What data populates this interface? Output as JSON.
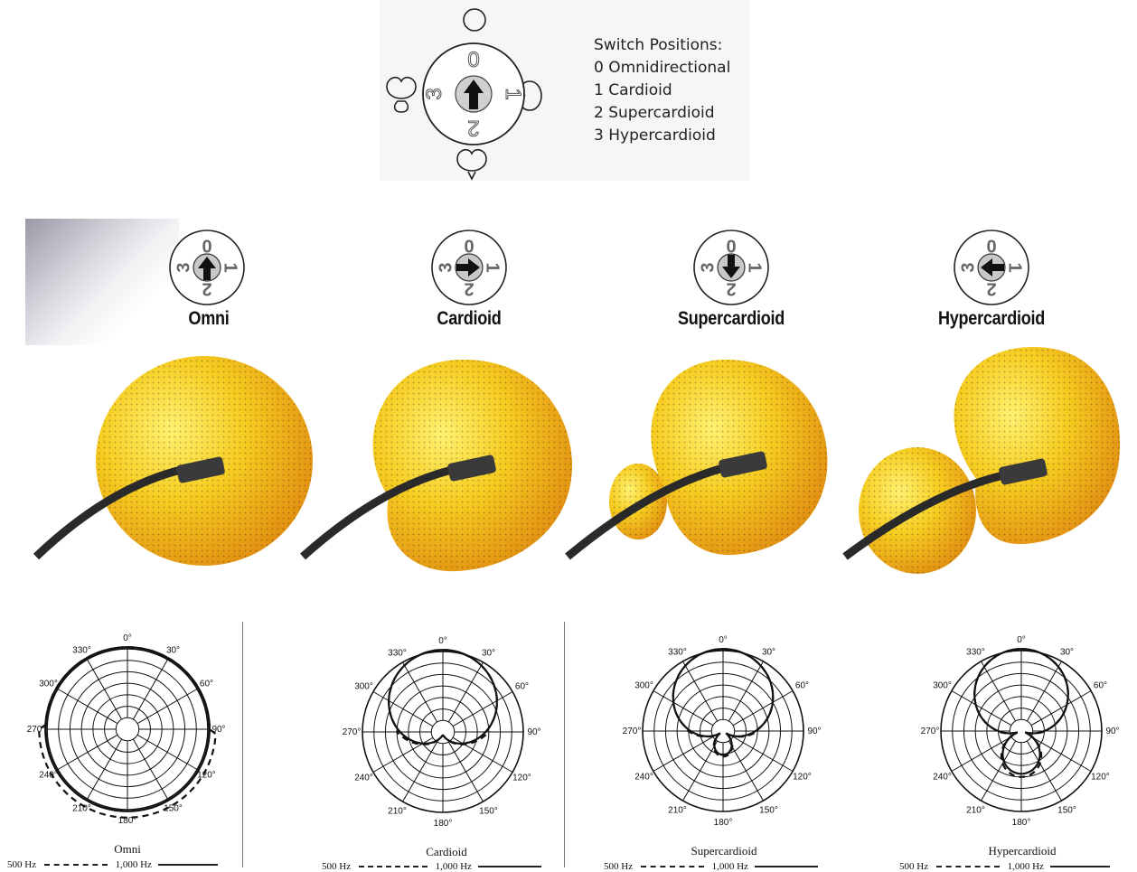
{
  "legend": {
    "title": "Switch Positions:",
    "items": [
      "0 Omnidirectional",
      "1 Cardioid",
      "2 Supercardioid",
      "3 Hypercardioid"
    ]
  },
  "switch_numbers": [
    "0",
    "1",
    "2",
    "3"
  ],
  "modes": [
    {
      "title": "Omni",
      "caption": "Omni",
      "arrow": "up"
    },
    {
      "title": "Cardioid",
      "caption": "Cardioid",
      "arrow": "right"
    },
    {
      "title": "Supercardioid",
      "caption": "Supercardioid",
      "arrow": "down"
    },
    {
      "title": "Hypercardioid",
      "caption": "Hypercardioid",
      "arrow": "left"
    }
  ],
  "polar_angles": [
    "0°",
    "30°",
    "60°",
    "90°",
    "120°",
    "150°",
    "180°",
    "210°",
    "240°",
    "270°",
    "300°",
    "330°"
  ],
  "frequency_legend": {
    "low": "500 Hz",
    "high": "1,000 Hz"
  },
  "colors": {
    "lobe_light": "#ffe94a",
    "lobe_mid": "#f6c21a",
    "lobe_dark": "#e08a10",
    "cable": "#2a2a2a"
  }
}
